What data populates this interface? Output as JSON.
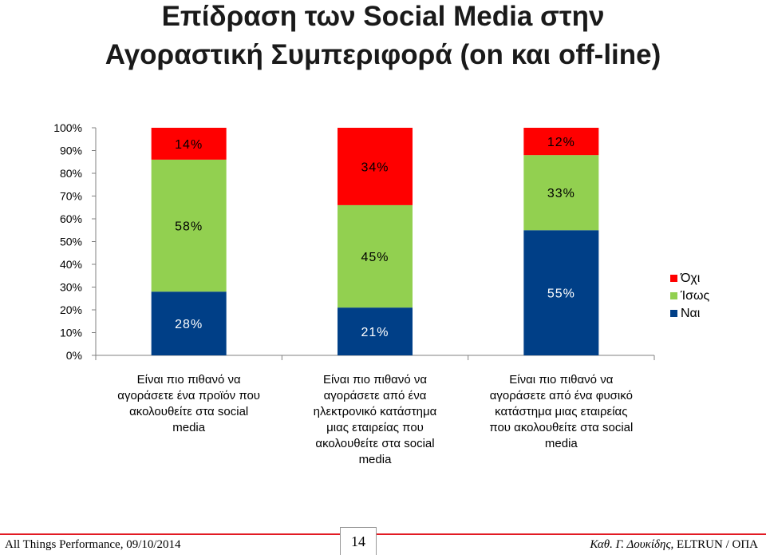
{
  "title_line1": "Επίδραση των Social Media στην",
  "title_line2": "Αγοραστική Συμπεριφορά (on και off-line)",
  "chart_data": {
    "type": "bar",
    "stacked": true,
    "ylim": [
      0,
      100
    ],
    "yticks": [
      "0%",
      "10%",
      "20%",
      "30%",
      "40%",
      "50%",
      "60%",
      "70%",
      "80%",
      "90%",
      "100%"
    ],
    "categories": [
      [
        "Είναι πιο πιθανό να",
        "αγοράσετε ένα προϊόν που",
        "ακολουθείτε στα social",
        "media"
      ],
      [
        "Είναι πιο πιθανό να",
        "αγοράσετε από ένα",
        "ηλεκτρονικό κατάστημα",
        "μιας εταιρείας που",
        "ακολουθείτε στα social",
        "media"
      ],
      [
        "Είναι πιο πιθανό να",
        "αγοράσετε από ένα φυσικό",
        "κατάστημα μιας εταιρείας",
        "που ακολουθείτε στα social",
        "media"
      ]
    ],
    "series": [
      {
        "name": "Ναι",
        "color": "#003f87",
        "values": [
          28,
          21,
          55
        ],
        "labels": [
          "28%",
          "21%",
          "55%"
        ]
      },
      {
        "name": "Ίσως",
        "color": "#92d050",
        "values": [
          58,
          45,
          33
        ],
        "labels": [
          "58%",
          "45%",
          "33%"
        ]
      },
      {
        "name": "Όχι",
        "color": "#ff0000",
        "values": [
          14,
          34,
          12
        ],
        "labels": [
          "14%",
          "34%",
          "12%"
        ]
      }
    ],
    "legend_order": [
      "Όχι",
      "Ίσως",
      "Ναι"
    ],
    "legend_position": "right"
  },
  "footer": {
    "left": "All Things Performance, 09/10/2014",
    "page": "14",
    "right_author": "Καθ. Γ. Δουκίδης,",
    "right_org": " ELTRUN / ΟΠΑ"
  }
}
